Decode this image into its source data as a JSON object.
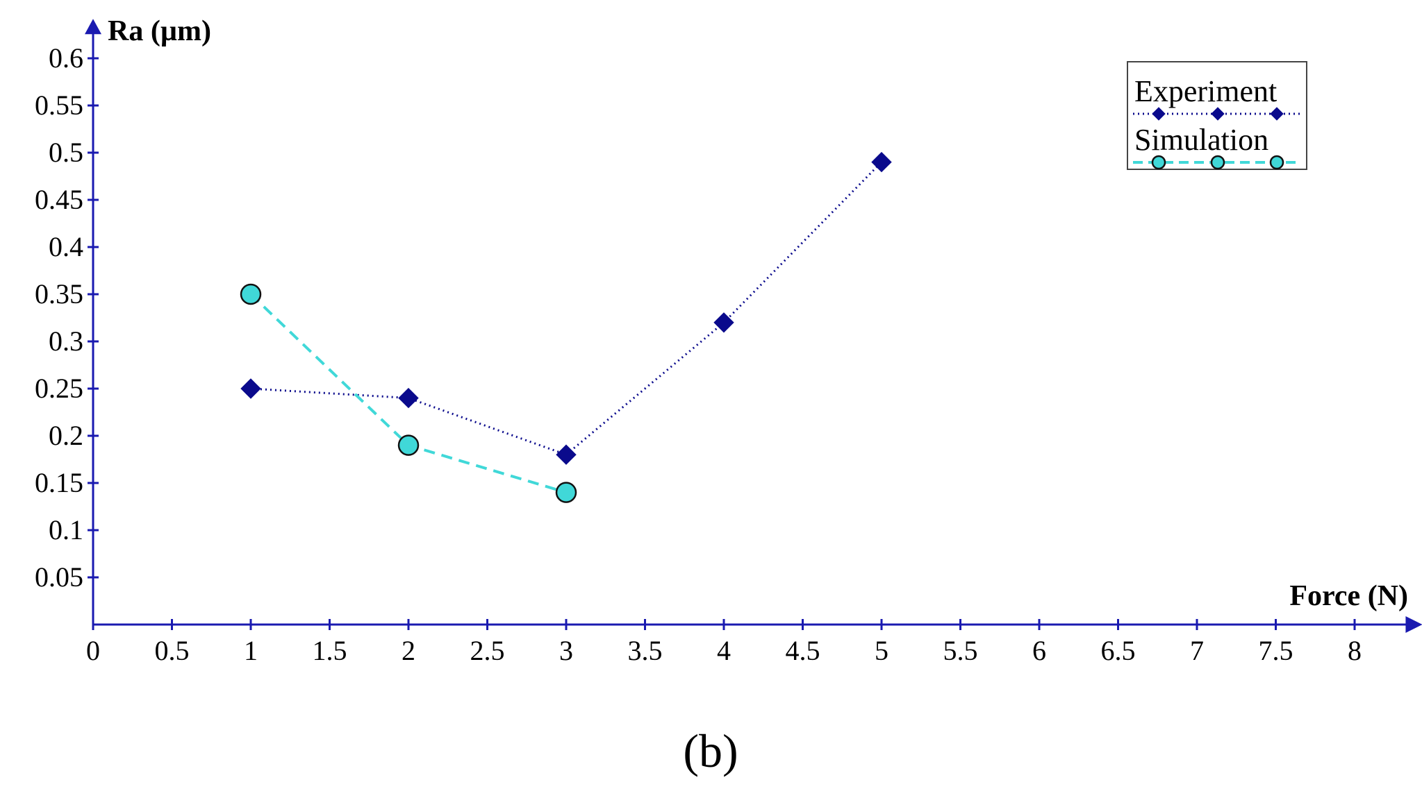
{
  "chart_data": {
    "type": "line",
    "xlabel": "Force (N)",
    "ylabel": "Ra (µm)",
    "xlim": [
      0,
      8.35
    ],
    "ylim": [
      0,
      0.63
    ],
    "x_ticks": [
      0,
      0.5,
      1,
      1.5,
      2,
      2.5,
      3,
      3.5,
      4,
      4.5,
      5,
      5.5,
      6,
      6.5,
      7,
      7.5,
      8
    ],
    "x_tick_labels": [
      "0",
      "0.5",
      "1",
      "1.5",
      "2",
      "2.5",
      "3",
      "3.5",
      "4",
      "4.5",
      "5",
      "5.5",
      "6",
      "6.5",
      "7",
      "7.5",
      "8"
    ],
    "y_ticks": [
      0.05,
      0.1,
      0.15,
      0.2,
      0.25,
      0.3,
      0.35,
      0.4,
      0.45,
      0.5,
      0.55,
      0.6
    ],
    "y_tick_labels": [
      "0.05",
      "0.1",
      "0.15",
      "0.2",
      "0.25",
      "0.3",
      "0.35",
      "0.4",
      "0.45",
      "0.5",
      "0.55",
      "0.6"
    ],
    "grid": false,
    "legend_position": "top-right",
    "series": [
      {
        "name": "Experiment",
        "color": "#0a0a8c",
        "line_style": "dotted",
        "marker": "diamond",
        "x": [
          1,
          2,
          3,
          4,
          5
        ],
        "y": [
          0.25,
          0.24,
          0.18,
          0.32,
          0.49
        ]
      },
      {
        "name": "Simulation",
        "color": "#40d8d8",
        "line_style": "dashed",
        "marker": "circle",
        "x": [
          1,
          2,
          3
        ],
        "y": [
          0.35,
          0.19,
          0.14
        ]
      }
    ],
    "caption": "(b)",
    "axis_color": "#1a1ab0"
  }
}
